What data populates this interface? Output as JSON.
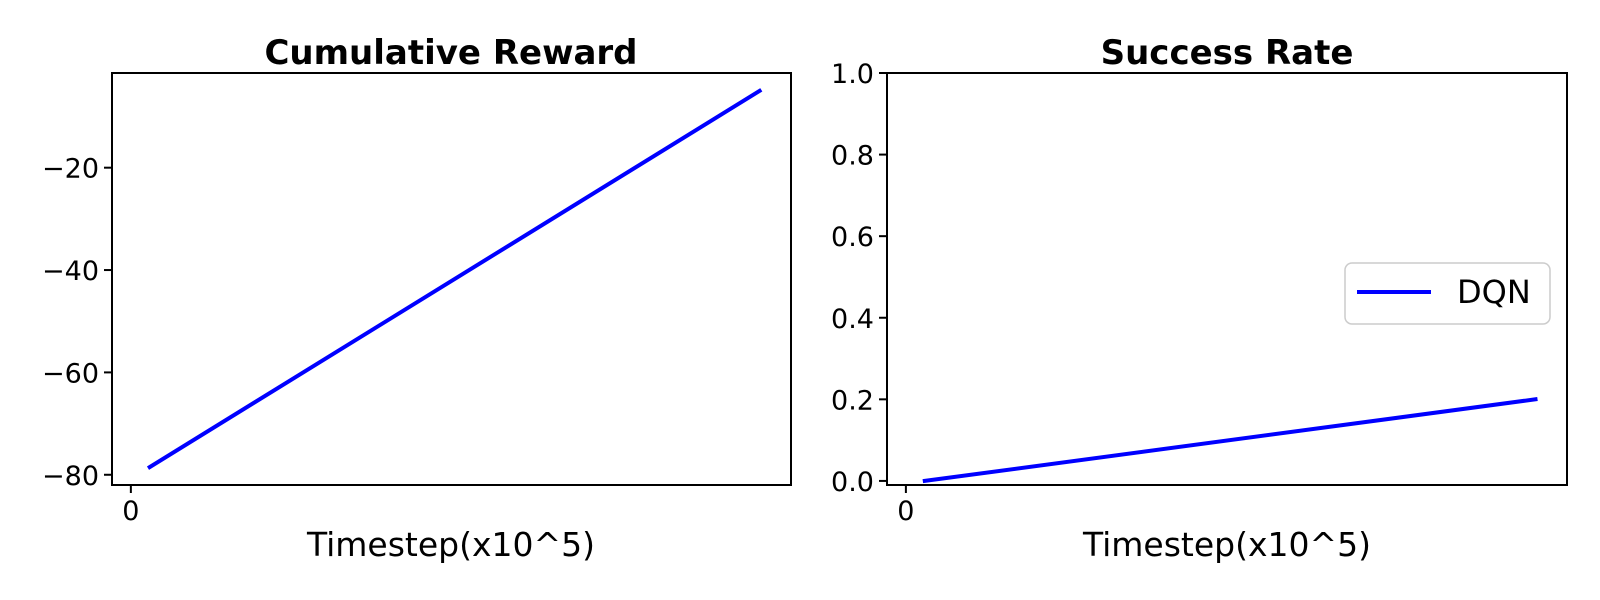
{
  "chart_data": [
    {
      "type": "line",
      "title": "Cumulative Reward",
      "xlabel": "Timestep(x10^5)",
      "ylabel": "",
      "xlim": [
        -0.03,
        1.05
      ],
      "ylim": [
        -82,
        -1.5
      ],
      "xticks": [
        0
      ],
      "xtick_labels": [
        "0"
      ],
      "yticks": [
        -80,
        -60,
        -40,
        -20
      ],
      "ytick_labels": [
        "−80",
        "−60",
        "−40",
        "−20"
      ],
      "grid": false,
      "legend": null,
      "series": [
        {
          "color": "#0000ff",
          "x": [
            0.03,
            1.0
          ],
          "y": [
            -78.5,
            -5
          ]
        }
      ]
    },
    {
      "type": "line",
      "title": "Success Rate",
      "xlabel": "Timestep(x10^5)",
      "ylabel": "",
      "xlim": [
        -0.03,
        1.05
      ],
      "ylim": [
        -0.01,
        1.0
      ],
      "xticks": [
        0
      ],
      "xtick_labels": [
        "0"
      ],
      "yticks": [
        0.0,
        0.2,
        0.4,
        0.6,
        0.8,
        1.0
      ],
      "ytick_labels": [
        "0.0",
        "0.2",
        "0.4",
        "0.6",
        "0.8",
        "1.0"
      ],
      "grid": false,
      "legend": "center-right",
      "series": [
        {
          "name": "DQN",
          "color": "#0000ff",
          "x": [
            0.03,
            1.0
          ],
          "y": [
            0.0,
            0.2
          ]
        }
      ]
    }
  ]
}
